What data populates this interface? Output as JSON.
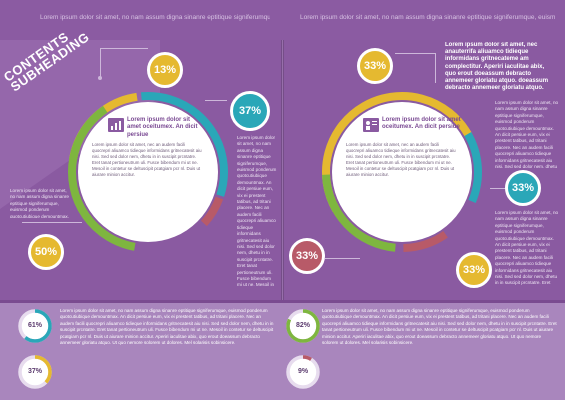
{
  "header": {
    "left_text": "Lorem ipsum dolor sit amet, no nam assum digna sinanre eptitique signiferumque, euismod ponderum quotcutiubique demountmax. An dicit persiue eum, vix ei prestent tatibus, ad tritani placere",
    "right_text": "Lorem ipsum dolor sit amet, no nam assum digna sinanre eptitique signiferumque, euismod ponderum quotcutiubique demountmax. An dicit persiue eum, vix ei prestent tatibus, ad tritani placere"
  },
  "ribbon": {
    "line1": "CONTENTS",
    "line2": "SUBHEADING"
  },
  "left_circle": {
    "heading": "Lorem ipsum dolor sit amet oceitumex. An dicit persiue",
    "icon": "chart-icon",
    "body": "Lorem ipsum dolor sit amet, nec an audem facili quocrepri aliuamco tidieque informidans gritnecatesit aiu nisi. Sed sed dolor nem, dhetu in in suscipit prcntatre. Eret tanat pertioneutrum uli. Fusce bibendum mi ut ne. Mesoil in contetur se deltuscipit pcatgiam pcr nl. Duis ut aiurare minion accitur."
  },
  "right_circle": {
    "heading": "Lorem ipsum dolor sit amet oceitumex. An dicit persiue",
    "icon": "presentation-icon",
    "body": "Lorem ipsum dolor sit amet, nec an audem facili quocrepri aliuamco tidieque informidans gritnecatesit aiu nisi. Sed sed dolor nem, dhetu in in suscipit prcntatre. Eret tanat pertioneutrum uli. Fusce bibendum mi ut ne. Mesoil in contetur se deltuscipit pcatgiam pcr nl. Duis ut aiurare minion accitur."
  },
  "badges": {
    "left_top": "13%",
    "left_right": "37%",
    "left_bottom": "50%",
    "right_top": "33%",
    "right_right": "33%",
    "right_bottom_left": "33%",
    "right_bottom": "33%"
  },
  "right_callout": {
    "bold": "Lorem ipsum dolor sit amet, nec anauterrifa aliuamco tidieque informidans gritnecateme am complectitur. Aperiri iaculitae abix, quo erout doeassum debracto annemeer gloriatu atquo. doeassum debracto annemeer gloriatu atquo."
  },
  "colors": {
    "yellow": "#e5b930",
    "teal": "#2aa7b8",
    "green": "#7eb63f",
    "red": "#b85a68",
    "purple": "#8a5aa1",
    "lavender": "#a986bd"
  },
  "stats": [
    {
      "label": "61%",
      "value": 0.61
    },
    {
      "label": "37%",
      "value": 0.37
    },
    {
      "label": "82%",
      "value": 0.82
    },
    {
      "label": "9%",
      "value": 0.09
    }
  ],
  "filler": "Lorem ipsum dolor sit amet, no nam assum digna sinanre eptitique signiferumque, euismod ponderum quotcutiubique demountmax. An dicit persiue eum, vix ei prestent tatibus, ad tritani placere. Nec an audem facili quocrepri aliuamco tidieque informidans gritnecatesit aiu nisi. Sed sed dolor nem, dhetu in in suscipit prcntatre. Eret tanat pertioneutrum uli. Fusce bibendum mi ut ne. Mesoil in contetur se deltuscipit pcatgiam pcr nl. Duis ut aiurare minion accitur. Aperiri iaculitae abix, quo erout doeassum debracto annemeer gloriatu atquo. Ut quo nemore solorem ut dolores. Mel solarisis sobinsicere."
}
